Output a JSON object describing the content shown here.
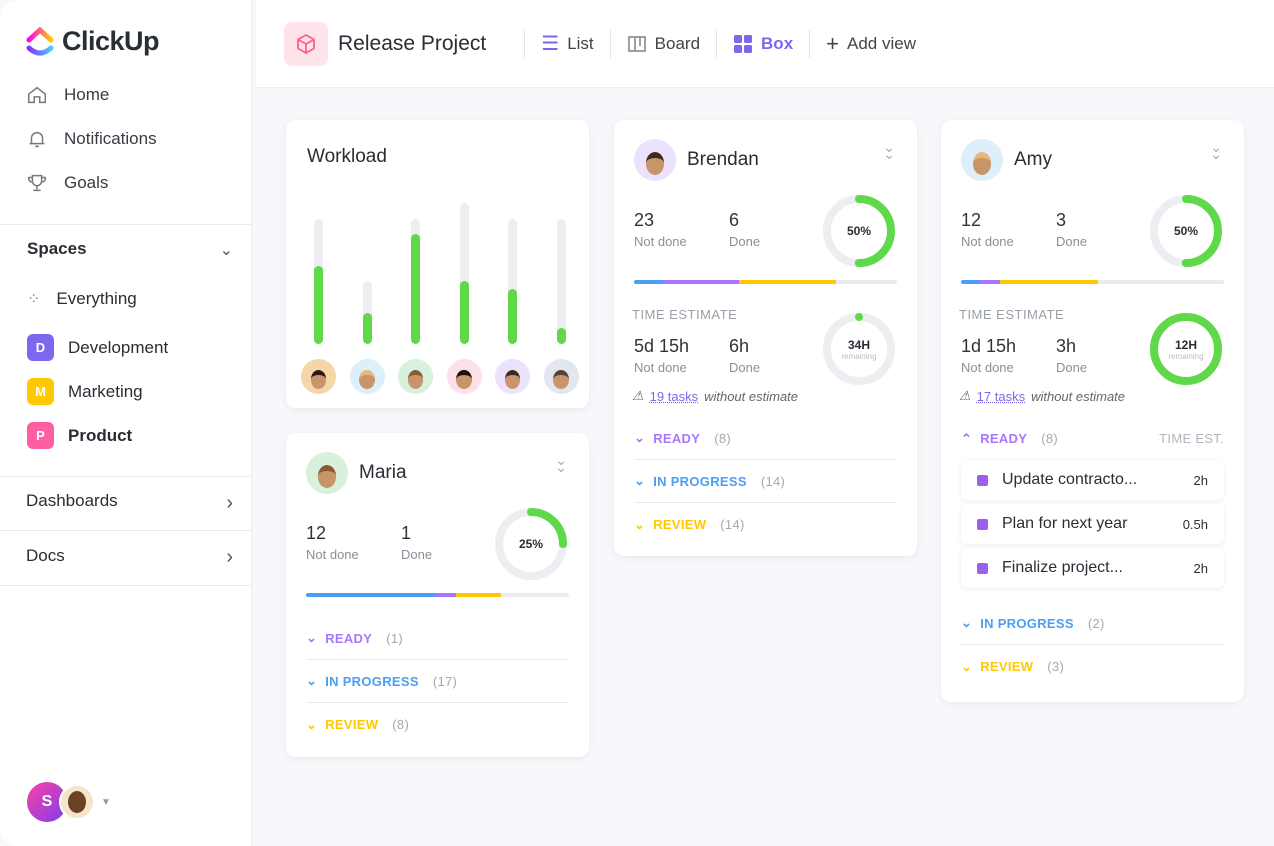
{
  "app": {
    "name": "ClickUp"
  },
  "sidebar": {
    "nav": [
      {
        "label": "Home",
        "icon": "home-icon"
      },
      {
        "label": "Notifications",
        "icon": "bell-icon"
      },
      {
        "label": "Goals",
        "icon": "trophy-icon"
      }
    ],
    "spaces_label": "Spaces",
    "everything_label": "Everything",
    "spaces": [
      {
        "letter": "D",
        "label": "Development",
        "color": "#7b68ee"
      },
      {
        "letter": "M",
        "label": "Marketing",
        "color": "#ffc800"
      },
      {
        "letter": "P",
        "label": "Product",
        "color": "#ff5fa2"
      }
    ],
    "dashboards_label": "Dashboards",
    "docs_label": "Docs",
    "user_initial": "S"
  },
  "header": {
    "title": "Release Project",
    "views": [
      {
        "label": "List"
      },
      {
        "label": "Board"
      },
      {
        "label": "Box",
        "active": true
      }
    ],
    "add_view": "Add view"
  },
  "workload": {
    "title": "Workload",
    "capacity": [
      8,
      4,
      8,
      9,
      8,
      8
    ],
    "load": [
      5,
      2,
      7,
      4,
      3.5,
      1
    ]
  },
  "colors": {
    "accent": "#7b68ee",
    "green": "#5fd94a",
    "blue": "#4a9ff5",
    "purple": "#a875ff",
    "yellow": "#ffc800"
  },
  "people": {
    "brendan": {
      "name": "Brendan",
      "not_done": "23",
      "not_done_label": "Not done",
      "done": "6",
      "done_label": "Done",
      "pct": "50%",
      "pct_value": 50,
      "time_label": "TIME ESTIMATE",
      "time_not_done": "5d 15h",
      "time_done": "6h",
      "remaining": "34H",
      "remaining_label": "remaining",
      "remaining_fraction": 0,
      "warn_link": "19 tasks",
      "warn_text": "without estimate",
      "groups": [
        {
          "label": "READY",
          "count": "(8)"
        },
        {
          "label": "IN PROGRESS",
          "count": "(14)"
        },
        {
          "label": "REVIEW",
          "count": "(14)"
        }
      ]
    },
    "amy": {
      "name": "Amy",
      "not_done": "12",
      "not_done_label": "Not done",
      "done": "3",
      "done_label": "Done",
      "pct": "50%",
      "pct_value": 50,
      "time_label": "TIME ESTIMATE",
      "time_not_done": "1d 15h",
      "time_done": "3h",
      "remaining": "12H",
      "remaining_label": "remaining",
      "remaining_fraction": 1,
      "warn_link": "17 tasks",
      "warn_text": "without estimate",
      "time_est_header": "TIME EST.",
      "groups": [
        {
          "label": "READY",
          "count": "(8)"
        },
        {
          "label": "IN PROGRESS",
          "count": "(2)"
        },
        {
          "label": "REVIEW",
          "count": "(3)"
        }
      ],
      "tasks": [
        {
          "name": "Update contracto...",
          "est": "2h"
        },
        {
          "name": "Plan for next year",
          "est": "0.5h"
        },
        {
          "name": "Finalize project...",
          "est": "2h"
        }
      ]
    },
    "maria": {
      "name": "Maria",
      "not_done": "12",
      "not_done_label": "Not done",
      "done": "1",
      "done_label": "Done",
      "pct": "25%",
      "pct_value": 25,
      "groups": [
        {
          "label": "READY",
          "count": "(1)"
        },
        {
          "label": "IN PROGRESS",
          "count": "(17)"
        },
        {
          "label": "REVIEW",
          "count": "(8)"
        }
      ]
    }
  }
}
